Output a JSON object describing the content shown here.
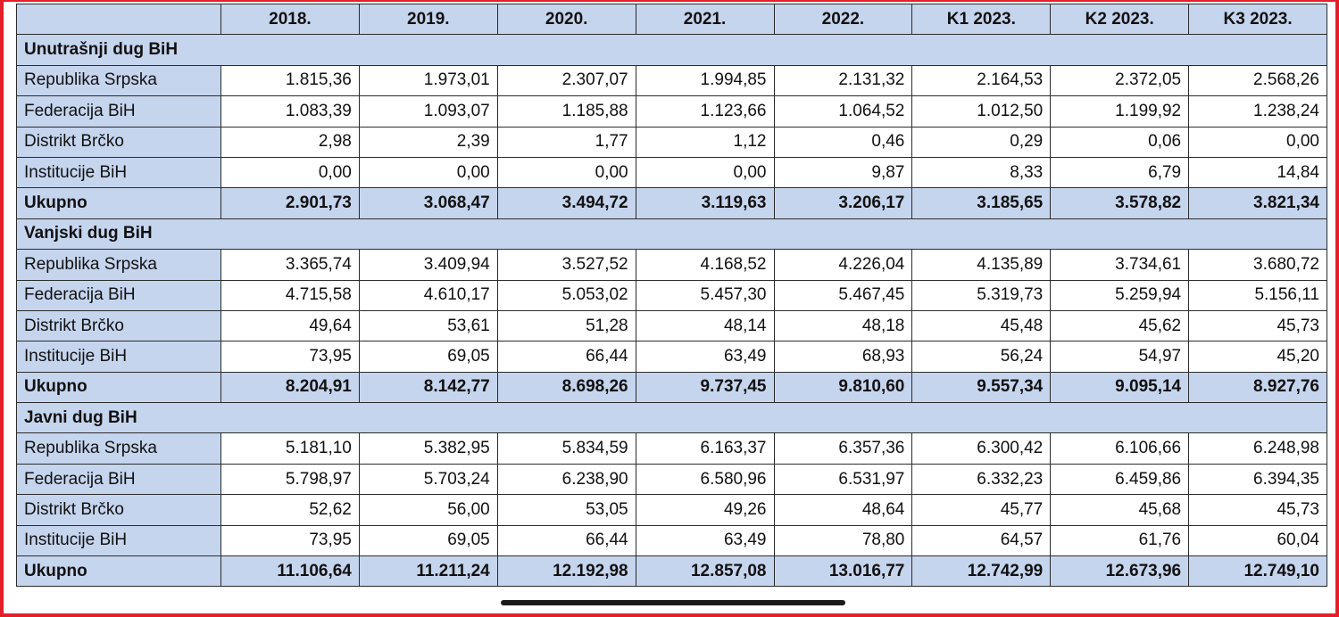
{
  "columns": [
    "",
    "2018.",
    "2019.",
    "2020.",
    "2021.",
    "2022.",
    "K1 2023.",
    "K2 2023.",
    "K3 2023."
  ],
  "sections": [
    {
      "title": "Unutrašnji dug BiH",
      "rows": [
        {
          "label": "Republika Srpska",
          "values": [
            "1.815,36",
            "1.973,01",
            "2.307,07",
            "1.994,85",
            "2.131,32",
            "2.164,53",
            "2.372,05",
            "2.568,26"
          ]
        },
        {
          "label": "Federacija BiH",
          "values": [
            "1.083,39",
            "1.093,07",
            "1.185,88",
            "1.123,66",
            "1.064,52",
            "1.012,50",
            "1.199,92",
            "1.238,24"
          ]
        },
        {
          "label": "Distrikt Brčko",
          "values": [
            "2,98",
            "2,39",
            "1,77",
            "1,12",
            "0,46",
            "0,29",
            "0,06",
            "0,00"
          ]
        },
        {
          "label": "Institucije BiH",
          "values": [
            "0,00",
            "0,00",
            "0,00",
            "0,00",
            "9,87",
            "8,33",
            "6,79",
            "14,84"
          ]
        }
      ],
      "total": {
        "label": "Ukupno",
        "values": [
          "2.901,73",
          "3.068,47",
          "3.494,72",
          "3.119,63",
          "3.206,17",
          "3.185,65",
          "3.578,82",
          "3.821,34"
        ]
      }
    },
    {
      "title": "Vanjski dug BiH",
      "rows": [
        {
          "label": "Republika Srpska",
          "values": [
            "3.365,74",
            "3.409,94",
            "3.527,52",
            "4.168,52",
            "4.226,04",
            "4.135,89",
            "3.734,61",
            "3.680,72"
          ]
        },
        {
          "label": "Federacija BiH",
          "values": [
            "4.715,58",
            "4.610,17",
            "5.053,02",
            "5.457,30",
            "5.467,45",
            "5.319,73",
            "5.259,94",
            "5.156,11"
          ]
        },
        {
          "label": "Distrikt Brčko",
          "values": [
            "49,64",
            "53,61",
            "51,28",
            "48,14",
            "48,18",
            "45,48",
            "45,62",
            "45,73"
          ]
        },
        {
          "label": "Institucije BiH",
          "values": [
            "73,95",
            "69,05",
            "66,44",
            "63,49",
            "68,93",
            "56,24",
            "54,97",
            "45,20"
          ]
        }
      ],
      "total": {
        "label": "Ukupno",
        "values": [
          "8.204,91",
          "8.142,77",
          "8.698,26",
          "9.737,45",
          "9.810,60",
          "9.557,34",
          "9.095,14",
          "8.927,76"
        ]
      }
    },
    {
      "title": "Javni dug BiH",
      "rows": [
        {
          "label": "Republika Srpska",
          "values": [
            "5.181,10",
            "5.382,95",
            "5.834,59",
            "6.163,37",
            "6.357,36",
            "6.300,42",
            "6.106,66",
            "6.248,98"
          ]
        },
        {
          "label": "Federacija BiH",
          "values": [
            "5.798,97",
            "5.703,24",
            "6.238,90",
            "6.580,96",
            "6.531,97",
            "6.332,23",
            "6.459,86",
            "6.394,35"
          ]
        },
        {
          "label": "Distrikt Brčko",
          "values": [
            "52,62",
            "56,00",
            "53,05",
            "49,26",
            "48,64",
            "45,77",
            "45,68",
            "45,73"
          ]
        },
        {
          "label": "Institucije BiH",
          "values": [
            "73,95",
            "69,05",
            "66,44",
            "63,49",
            "78,80",
            "64,57",
            "61,76",
            "60,04"
          ]
        }
      ],
      "total": {
        "label": "Ukupno",
        "values": [
          "11.106,64",
          "11.211,24",
          "12.192,98",
          "12.857,08",
          "13.016,77",
          "12.742,99",
          "12.673,96",
          "12.749,10"
        ]
      }
    }
  ],
  "colors": {
    "header_fill": "#c6d5ee",
    "frame_border": "#e3202a",
    "grid_line": "#2b2b2b"
  }
}
